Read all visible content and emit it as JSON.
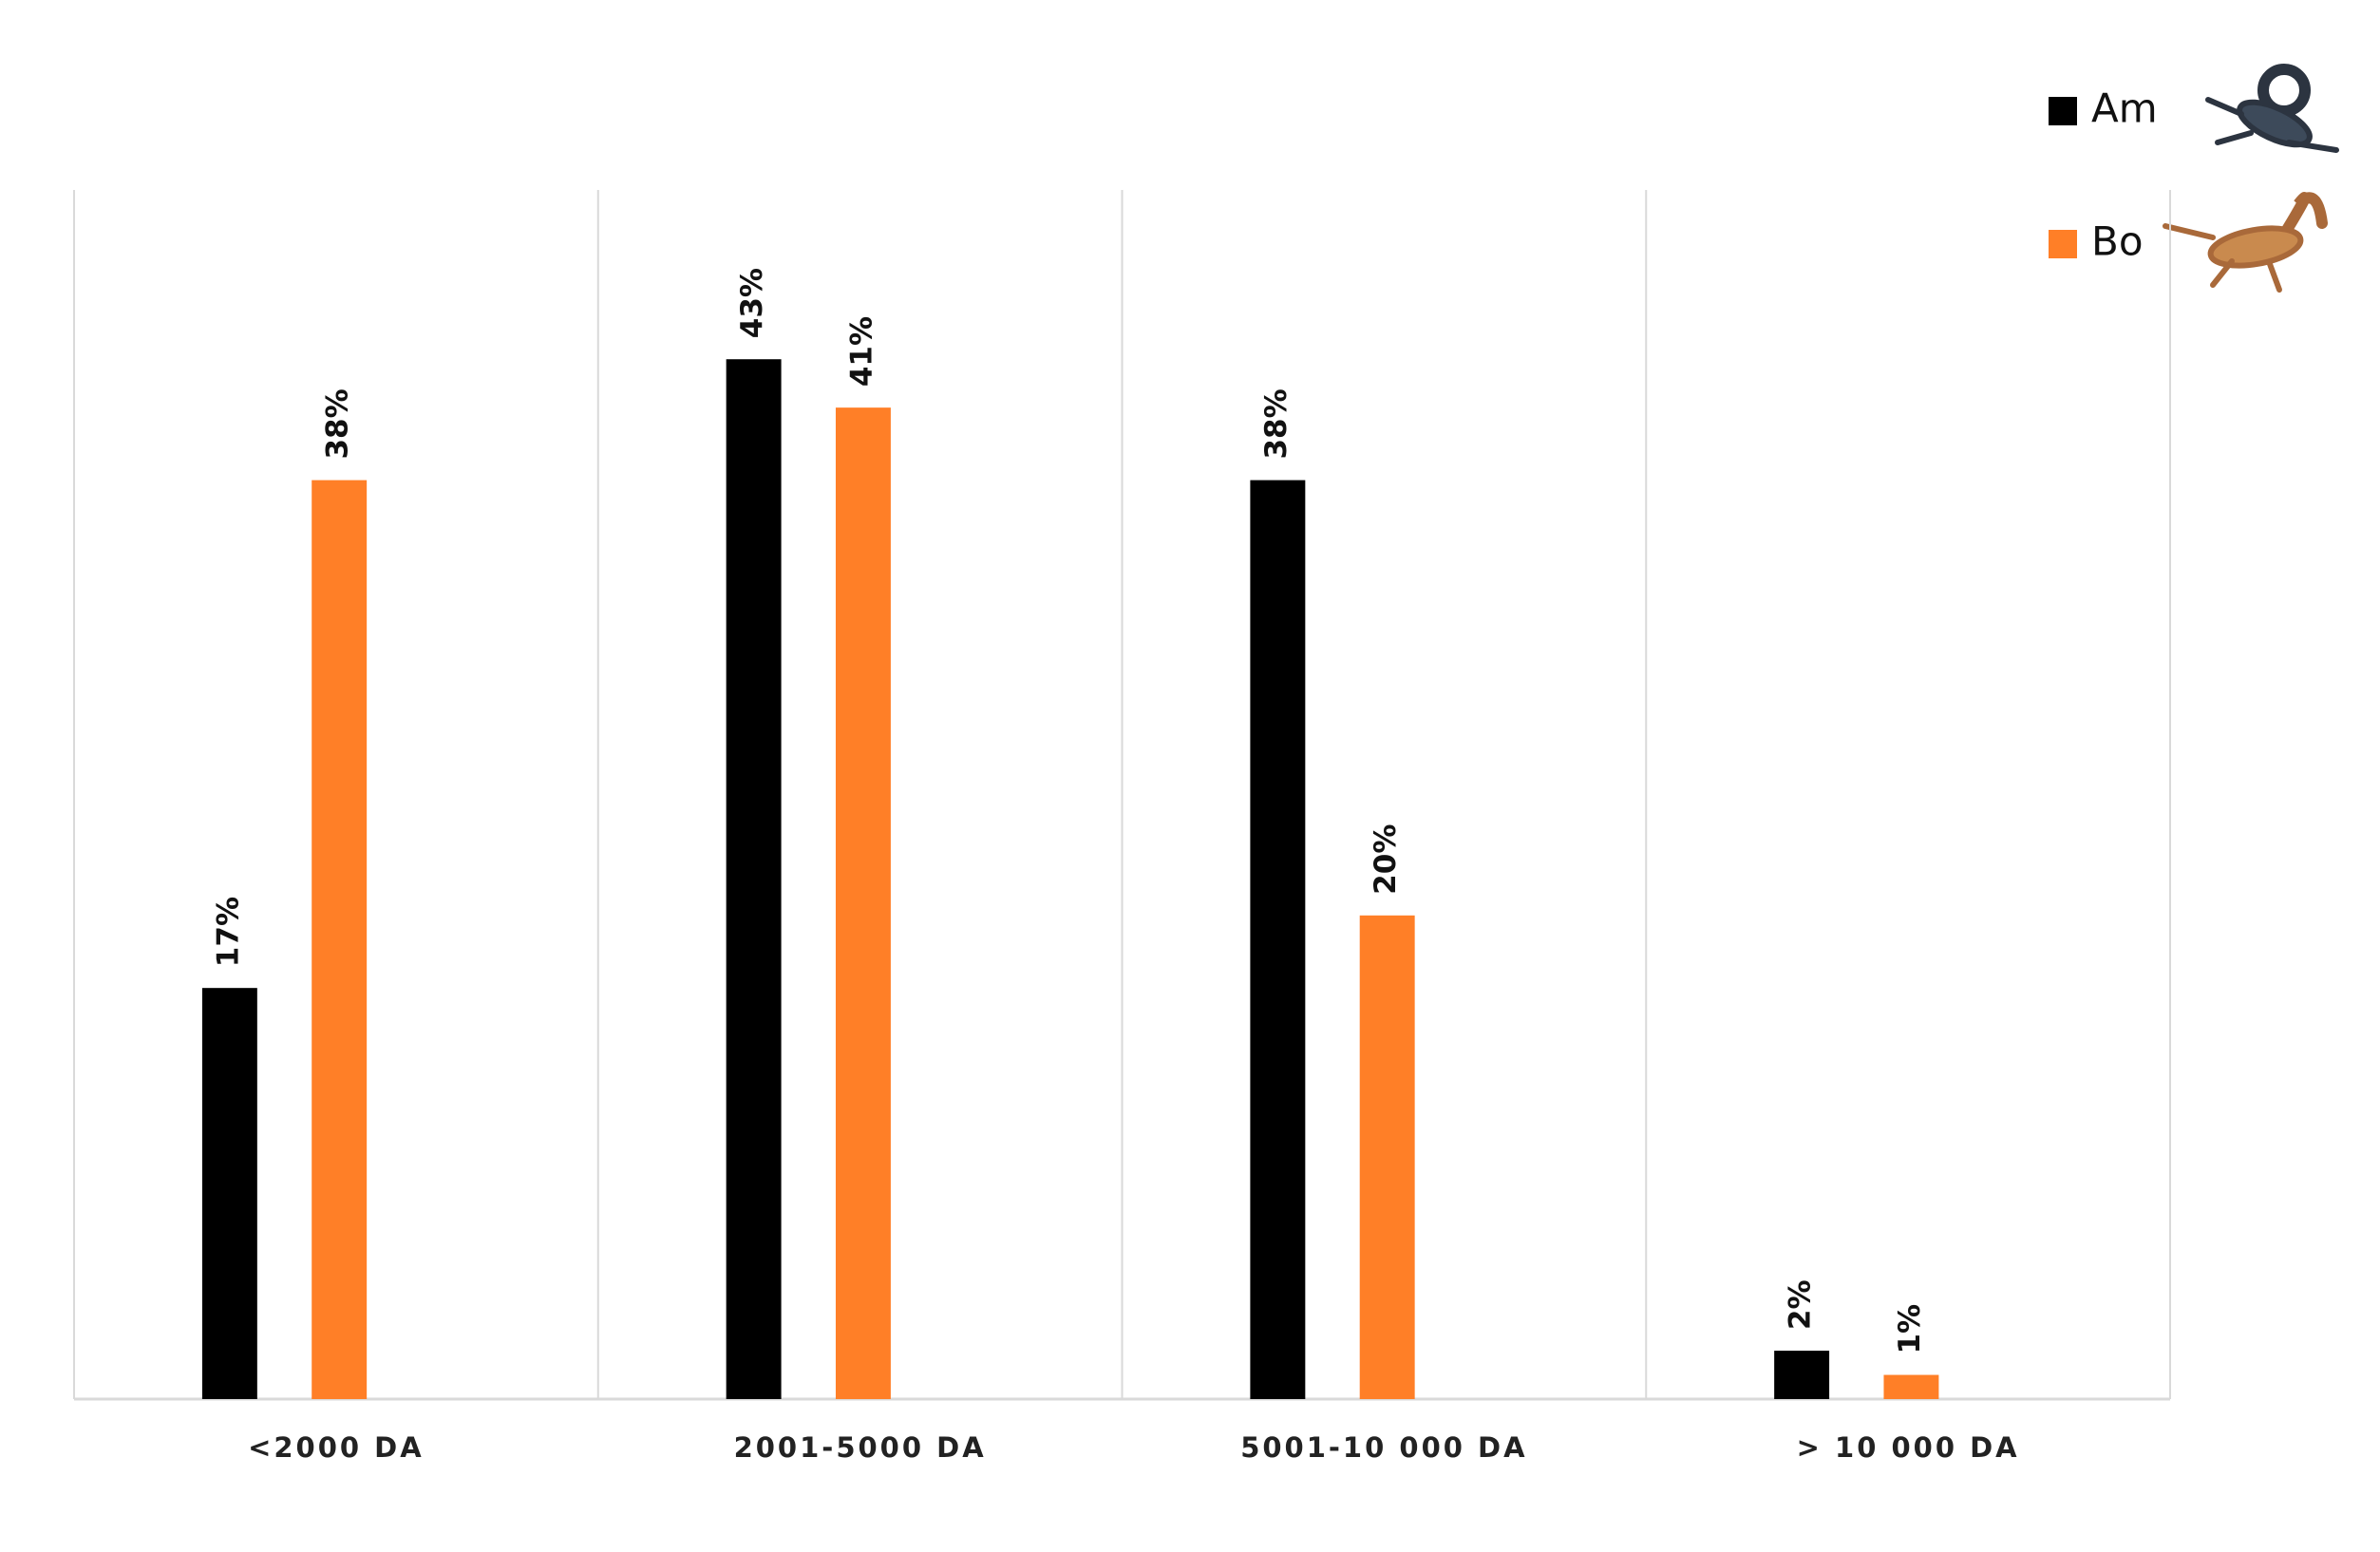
{
  "chart_data": {
    "type": "bar",
    "categories": [
      "<2000 DA",
      "2001-5000 DA",
      "5001-10 000 DA",
      "> 10 000 DA"
    ],
    "series": [
      {
        "name": "Am",
        "color": "#000000",
        "values": [
          17,
          43,
          38,
          2
        ],
        "value_labels": [
          "17%",
          "43%",
          "38%",
          "2%"
        ]
      },
      {
        "name": "Bo",
        "color": "#ff7f27",
        "values": [
          38,
          41,
          20,
          1
        ],
        "value_labels": [
          "38%",
          "41%",
          "20%",
          "1%"
        ]
      }
    ],
    "ylim": [
      0,
      50
    ],
    "legend": "top-right"
  }
}
